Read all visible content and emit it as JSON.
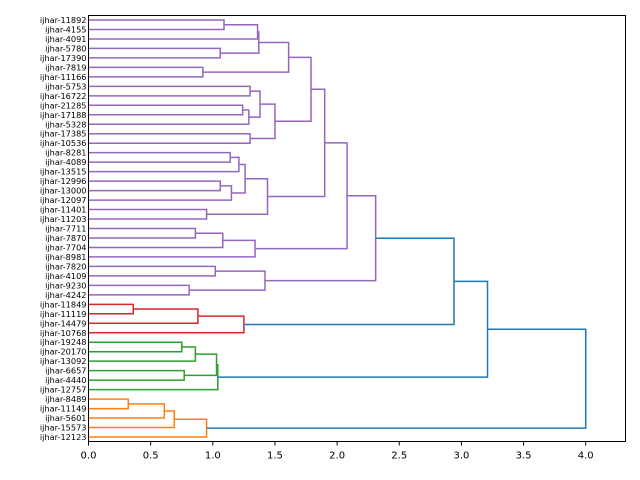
{
  "chart_data": {
    "type": "dendrogram",
    "orientation": "right",
    "xlim": [
      0,
      4.32
    ],
    "x_ticks": [
      "0.0",
      "0.5",
      "1.0",
      "1.5",
      "2.0",
      "2.5",
      "3.0",
      "3.5",
      "4.0"
    ],
    "x_tick_values": [
      0,
      0.5,
      1.0,
      1.5,
      2.0,
      2.5,
      3.0,
      3.5,
      4.0
    ],
    "leaves": [
      "ijhar-11892",
      "ijhar-4155",
      "ijhar-4091",
      "ijhar-5780",
      "ijhar-17390",
      "ijhar-7819",
      "ijhar-11166",
      "ijhar-5753",
      "ijhar-16722",
      "ijhar-21285",
      "ijhar-17188",
      "ijhar-5328",
      "ijhar-17385",
      "ijhar-10536",
      "ijhar-8281",
      "ijhar-4089",
      "ijhar-13515",
      "ijhar-12996",
      "ijhar-13000",
      "ijhar-12097",
      "ijhar-11401",
      "ijhar-11203",
      "ijhar-7711",
      "ijhar-7870",
      "ijhar-7704",
      "ijhar-8981",
      "ijhar-7820",
      "ijhar-4109",
      "ijhar-9230",
      "ijhar-4242",
      "ijhar-11849",
      "ijhar-11119",
      "ijhar-14479",
      "ijhar-10768",
      "ijhar-19248",
      "ijhar-20170",
      "ijhar-13092",
      "ijhar-6657",
      "ijhar-4440",
      "ijhar-12757",
      "ijhar-8489",
      "ijhar-11149",
      "ijhar-5601",
      "ijhar-15573",
      "ijhar-12123"
    ],
    "colors": {
      "purple": "#9467bd",
      "red": "#d62728",
      "green": "#2ca02c",
      "orange": "#ff7f0e",
      "blue": "#1f77b4"
    },
    "merges": [
      {
        "id": "A",
        "left": 0,
        "right": 1,
        "height": 1.09,
        "color": "purple"
      },
      {
        "id": "B",
        "left": "A",
        "right": 2,
        "height": 1.36,
        "color": "purple"
      },
      {
        "id": "C",
        "left": 3,
        "right": 4,
        "height": 1.06,
        "color": "purple"
      },
      {
        "id": "D",
        "left": "B",
        "right": "C",
        "height": 1.37,
        "color": "purple"
      },
      {
        "id": "E",
        "left": 5,
        "right": 6,
        "height": 0.92,
        "color": "purple"
      },
      {
        "id": "F",
        "left": "D",
        "right": "E",
        "height": 1.61,
        "color": "purple"
      },
      {
        "id": "G1",
        "left": 7,
        "right": 8,
        "height": 1.3,
        "color": "purple"
      },
      {
        "id": "G2",
        "left": 9,
        "right": 10,
        "height": 1.24,
        "color": "purple"
      },
      {
        "id": "G3",
        "left": "G2",
        "right": 11,
        "height": 1.29,
        "color": "purple"
      },
      {
        "id": "G4",
        "left": "G1",
        "right": "G3",
        "height": 1.38,
        "color": "purple"
      },
      {
        "id": "G5",
        "left": 12,
        "right": 13,
        "height": 1.3,
        "color": "purple"
      },
      {
        "id": "G",
        "left": "G4",
        "right": "G5",
        "height": 1.5,
        "color": "purple"
      },
      {
        "id": "FG",
        "left": "F",
        "right": "G",
        "height": 1.79,
        "color": "purple"
      },
      {
        "id": "H1",
        "left": 14,
        "right": 15,
        "height": 1.14,
        "color": "purple"
      },
      {
        "id": "H2",
        "left": "H1",
        "right": 16,
        "height": 1.21,
        "color": "purple"
      },
      {
        "id": "H3",
        "left": 17,
        "right": 18,
        "height": 1.06,
        "color": "purple"
      },
      {
        "id": "H4",
        "left": "H3",
        "right": 19,
        "height": 1.15,
        "color": "purple"
      },
      {
        "id": "H5",
        "left": "H2",
        "right": "H4",
        "height": 1.26,
        "color": "purple"
      },
      {
        "id": "H6",
        "left": 20,
        "right": 21,
        "height": 0.95,
        "color": "purple"
      },
      {
        "id": "H",
        "left": "H5",
        "right": "H6",
        "height": 1.44,
        "color": "purple"
      },
      {
        "id": "I",
        "left": "FG",
        "right": "H",
        "height": 1.9,
        "color": "purple"
      },
      {
        "id": "J1",
        "left": 22,
        "right": 23,
        "height": 0.86,
        "color": "purple"
      },
      {
        "id": "J2",
        "left": "J1",
        "right": 24,
        "height": 1.08,
        "color": "purple"
      },
      {
        "id": "J3",
        "left": "J2",
        "right": 25,
        "height": 1.34,
        "color": "purple"
      },
      {
        "id": "J",
        "left": "I",
        "right": "J3",
        "height": 2.08,
        "color": "purple"
      },
      {
        "id": "K1",
        "left": 26,
        "right": 27,
        "height": 1.02,
        "color": "purple"
      },
      {
        "id": "K2",
        "left": 28,
        "right": 29,
        "height": 0.81,
        "color": "purple"
      },
      {
        "id": "K3",
        "left": "K1",
        "right": "K2",
        "height": 1.42,
        "color": "purple"
      },
      {
        "id": "K",
        "left": "J",
        "right": "K3",
        "height": 2.31,
        "color": "purple"
      },
      {
        "id": "R1",
        "left": 30,
        "right": 31,
        "height": 0.36,
        "color": "red"
      },
      {
        "id": "R2",
        "left": "R1",
        "right": 32,
        "height": 0.88,
        "color": "red"
      },
      {
        "id": "R",
        "left": "R2",
        "right": 33,
        "height": 1.25,
        "color": "red"
      },
      {
        "id": "N1",
        "left": 34,
        "right": 35,
        "height": 0.75,
        "color": "green"
      },
      {
        "id": "N2",
        "left": "N1",
        "right": 36,
        "height": 0.86,
        "color": "green"
      },
      {
        "id": "N3",
        "left": 37,
        "right": 38,
        "height": 0.77,
        "color": "green"
      },
      {
        "id": "N4",
        "left": "N2",
        "right": "N3",
        "height": 1.03,
        "color": "green"
      },
      {
        "id": "N",
        "left": "N4",
        "right": 39,
        "height": 1.04,
        "color": "green"
      },
      {
        "id": "O1",
        "left": 40,
        "right": 41,
        "height": 0.32,
        "color": "orange"
      },
      {
        "id": "O2",
        "left": "O1",
        "right": 42,
        "height": 0.61,
        "color": "orange"
      },
      {
        "id": "O3",
        "left": "O2",
        "right": 43,
        "height": 0.69,
        "color": "orange"
      },
      {
        "id": "O",
        "left": "O3",
        "right": 44,
        "height": 0.95,
        "color": "orange"
      },
      {
        "id": "KR",
        "left": "K",
        "right": "R",
        "height": 2.94,
        "color": "blue"
      },
      {
        "id": "KRN",
        "left": "KR",
        "right": "N",
        "height": 3.21,
        "color": "blue"
      },
      {
        "id": "ROOT",
        "left": "KRN",
        "right": "O",
        "height": 4.0,
        "color": "blue"
      }
    ]
  }
}
